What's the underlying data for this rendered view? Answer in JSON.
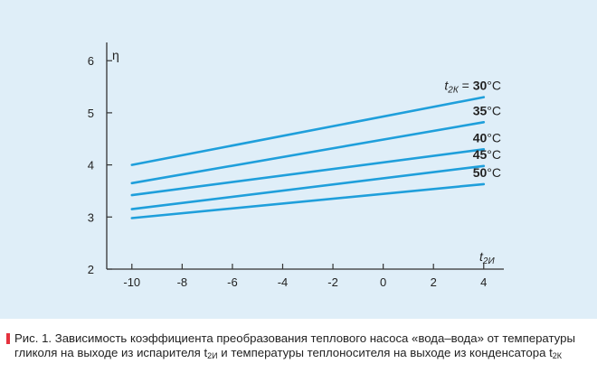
{
  "chart_data": {
    "type": "line",
    "title": "",
    "xlabel_var": "t",
    "xlabel_sub": "2И",
    "ylabel": "η",
    "xlim": [
      -11.0,
      4.8
    ],
    "ylim": [
      2,
      6.35
    ],
    "xticks": [
      -10,
      -8,
      -6,
      -4,
      -2,
      0,
      2,
      4
    ],
    "xtick_labels": [
      "-10",
      "-8",
      "-6",
      "-4",
      "-2",
      "0",
      "2",
      "4"
    ],
    "yticks": [
      2,
      3,
      4,
      5,
      6
    ],
    "ytick_labels": [
      "2",
      "3",
      "4",
      "5",
      "6"
    ],
    "grid": false,
    "legend": "inline-right",
    "series": [
      {
        "name": "30",
        "prefix_var": "t",
        "prefix_sub": "2К",
        "prefix_eq": " = ",
        "unit": "°C",
        "x": [
          -10,
          4
        ],
        "y": [
          4.0,
          5.3
        ]
      },
      {
        "name": "35",
        "unit": "°C",
        "x": [
          -10,
          4
        ],
        "y": [
          3.65,
          4.82
        ]
      },
      {
        "name": "40",
        "unit": "°C",
        "x": [
          -10,
          4
        ],
        "y": [
          3.42,
          4.3
        ]
      },
      {
        "name": "45",
        "unit": "°C",
        "x": [
          -10,
          4
        ],
        "y": [
          3.15,
          3.98
        ]
      },
      {
        "name": "50",
        "unit": "°C",
        "x": [
          -10,
          4
        ],
        "y": [
          2.98,
          3.63
        ]
      }
    ],
    "colors": {
      "line": "#1f9fdb",
      "background": "#dfeef8"
    }
  },
  "caption": {
    "marker_color": "#e5323e",
    "text": "Рис. 1. Зависимость коэффициента преобразования теплового насоса «вода–вода» от температуры гликоля на выходе из испарителя t",
    "sub1": "2И",
    "mid": " и температуры теплоносителя на выходе из конденсатора t",
    "sub2": "2К"
  }
}
